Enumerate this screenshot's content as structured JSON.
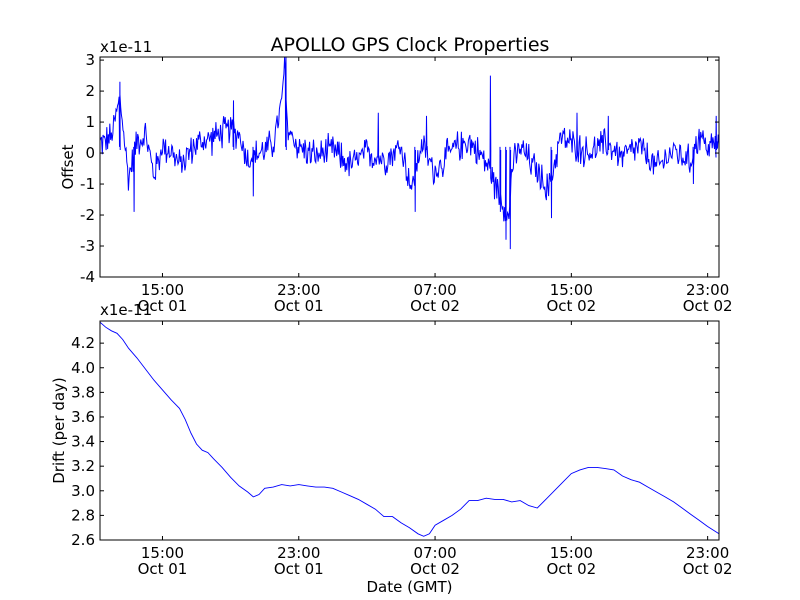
{
  "title": "APOLLO GPS Clock Properties",
  "colors": {
    "line": "#0000ff",
    "axes": "#000000",
    "background": "#ffffff"
  },
  "chart_data": [
    {
      "type": "line",
      "id": "offset",
      "ylabel": "Offset",
      "xlabel": "",
      "y_multiplier": "x1e-11",
      "xlim": [
        "Oct 01 11:20",
        "Oct 02 23:40"
      ],
      "ylim": [
        -4,
        3.1
      ],
      "yticks": [
        -4,
        -3,
        -2,
        -1,
        0,
        1,
        2,
        3
      ],
      "xticks": [
        {
          "time": "15:00",
          "date": "Oct 01"
        },
        {
          "time": "23:00",
          "date": "Oct 01"
        },
        {
          "time": "07:00",
          "date": "Oct 02"
        },
        {
          "time": "15:00",
          "date": "Oct 02"
        },
        {
          "time": "23:00",
          "date": "Oct 02"
        }
      ],
      "grid": false,
      "series": [
        {
          "color": "#0000ff",
          "points": [
            [
              "Oct 01 11:20",
              0.3
            ],
            [
              "Oct 01 12:00",
              0.5
            ],
            [
              "Oct 01 12:30",
              1.8
            ],
            [
              "Oct 01 13:00",
              -0.8
            ],
            [
              "Oct 01 13:30",
              0.4
            ],
            [
              "Oct 01 14:00",
              0.6
            ],
            [
              "Oct 01 14:30",
              -0.7
            ],
            [
              "Oct 01 15:00",
              0.2
            ],
            [
              "Oct 01 15:30",
              0.1
            ],
            [
              "Oct 01 16:00",
              -0.4
            ],
            [
              "Oct 01 17:00",
              0.3
            ],
            [
              "Oct 01 18:00",
              0.5
            ],
            [
              "Oct 01 19:00",
              0.8
            ],
            [
              "Oct 01 19:30",
              0.6
            ],
            [
              "Oct 01 20:00",
              -0.2
            ],
            [
              "Oct 01 21:00",
              0.1
            ],
            [
              "Oct 01 21:30",
              0.3
            ],
            [
              "Oct 01 22:00",
              1.6
            ],
            [
              "Oct 01 22:10",
              2.9
            ],
            [
              "Oct 01 22:20",
              0.8
            ],
            [
              "Oct 01 23:00",
              0.2
            ],
            [
              "Oct 02 00:00",
              -0.1
            ],
            [
              "Oct 02 01:00",
              0.1
            ],
            [
              "Oct 02 02:00",
              -0.4
            ],
            [
              "Oct 02 03:00",
              0.0
            ],
            [
              "Oct 02 04:00",
              -0.2
            ],
            [
              "Oct 02 05:00",
              0.2
            ],
            [
              "Oct 02 05:40",
              -1.2
            ],
            [
              "Oct 02 06:10",
              0.3
            ],
            [
              "Oct 02 07:00",
              -0.6
            ],
            [
              "Oct 02 08:00",
              0.1
            ],
            [
              "Oct 02 09:00",
              0.4
            ],
            [
              "Oct 02 10:00",
              -0.3
            ],
            [
              "Oct 02 10:40",
              -1.2
            ],
            [
              "Oct 02 11:05",
              -1.7
            ],
            [
              "Oct 02 11:20",
              -2.2
            ],
            [
              "Oct 02 11:30",
              -0.5
            ],
            [
              "Oct 02 12:00",
              0.2
            ],
            [
              "Oct 02 13:00",
              -0.6
            ],
            [
              "Oct 02 13:40",
              -1.2
            ],
            [
              "Oct 02 14:20",
              0.5
            ],
            [
              "Oct 02 15:00",
              0.3
            ],
            [
              "Oct 02 16:00",
              0.0
            ],
            [
              "Oct 02 17:00",
              0.3
            ],
            [
              "Oct 02 18:00",
              -0.1
            ],
            [
              "Oct 02 19:00",
              0.2
            ],
            [
              "Oct 02 20:00",
              -0.5
            ],
            [
              "Oct 02 21:00",
              0.1
            ],
            [
              "Oct 02 22:00",
              -0.3
            ],
            [
              "Oct 02 22:30",
              0.6
            ],
            [
              "Oct 02 23:00",
              0.2
            ],
            [
              "Oct 02 23:40",
              0.3
            ]
          ],
          "noise_amplitude": 0.45,
          "spikes": [
            [
              "Oct 01 12:30",
              2.3
            ],
            [
              "Oct 01 13:20",
              -1.9
            ],
            [
              "Oct 01 19:10",
              1.7
            ],
            [
              "Oct 01 20:20",
              -1.4
            ],
            [
              "Oct 01 22:15",
              3.1
            ],
            [
              "Oct 02 03:40",
              1.3
            ],
            [
              "Oct 02 05:50",
              -1.9
            ],
            [
              "Oct 02 06:30",
              1.2
            ],
            [
              "Oct 02 10:15",
              2.5
            ],
            [
              "Oct 02 10:50",
              -1.9
            ],
            [
              "Oct 02 11:10",
              -2.8
            ],
            [
              "Oct 02 11:25",
              -3.1
            ],
            [
              "Oct 02 13:50",
              -2.1
            ],
            [
              "Oct 02 15:20",
              1.3
            ],
            [
              "Oct 02 17:10",
              1.2
            ],
            [
              "Oct 02 22:10",
              -1.0
            ],
            [
              "Oct 02 23:30",
              1.2
            ]
          ]
        }
      ]
    },
    {
      "type": "line",
      "id": "drift",
      "ylabel": "Drift (per day)",
      "xlabel": "Date (GMT)",
      "y_multiplier": "x1e-11",
      "xlim": [
        "Oct 01 11:20",
        "Oct 02 23:40"
      ],
      "ylim": [
        2.6,
        4.38
      ],
      "yticks": [
        2.6,
        2.8,
        3.0,
        3.2,
        3.4,
        3.6,
        3.8,
        4.0,
        4.2
      ],
      "xticks": [
        {
          "time": "15:00",
          "date": "Oct 01"
        },
        {
          "time": "23:00",
          "date": "Oct 01"
        },
        {
          "time": "07:00",
          "date": "Oct 02"
        },
        {
          "time": "15:00",
          "date": "Oct 02"
        },
        {
          "time": "23:00",
          "date": "Oct 02"
        }
      ],
      "grid": false,
      "series": [
        {
          "color": "#0000ff",
          "points": [
            [
              "Oct 01 11:20",
              4.37
            ],
            [
              "Oct 01 11:40",
              4.33
            ],
            [
              "Oct 01 12:00",
              4.3
            ],
            [
              "Oct 01 12:20",
              4.28
            ],
            [
              "Oct 01 12:40",
              4.23
            ],
            [
              "Oct 01 13:00",
              4.16
            ],
            [
              "Oct 01 13:30",
              4.08
            ],
            [
              "Oct 01 14:00",
              3.99
            ],
            [
              "Oct 01 14:30",
              3.9
            ],
            [
              "Oct 01 15:00",
              3.82
            ],
            [
              "Oct 01 15:30",
              3.74
            ],
            [
              "Oct 01 16:00",
              3.67
            ],
            [
              "Oct 01 16:20",
              3.58
            ],
            [
              "Oct 01 16:40",
              3.47
            ],
            [
              "Oct 01 17:00",
              3.38
            ],
            [
              "Oct 01 17:20",
              3.33
            ],
            [
              "Oct 01 17:40",
              3.31
            ],
            [
              "Oct 01 18:00",
              3.26
            ],
            [
              "Oct 01 18:30",
              3.19
            ],
            [
              "Oct 01 19:00",
              3.11
            ],
            [
              "Oct 01 19:30",
              3.04
            ],
            [
              "Oct 01 20:00",
              2.99
            ],
            [
              "Oct 01 20:20",
              2.95
            ],
            [
              "Oct 01 20:40",
              2.97
            ],
            [
              "Oct 01 21:00",
              3.02
            ],
            [
              "Oct 01 21:30",
              3.03
            ],
            [
              "Oct 01 22:00",
              3.05
            ],
            [
              "Oct 01 22:30",
              3.04
            ],
            [
              "Oct 01 23:00",
              3.05
            ],
            [
              "Oct 01 23:30",
              3.04
            ],
            [
              "Oct 02 00:00",
              3.03
            ],
            [
              "Oct 02 00:30",
              3.03
            ],
            [
              "Oct 02 01:00",
              3.02
            ],
            [
              "Oct 02 01:30",
              2.99
            ],
            [
              "Oct 02 02:00",
              2.96
            ],
            [
              "Oct 02 02:30",
              2.93
            ],
            [
              "Oct 02 03:00",
              2.89
            ],
            [
              "Oct 02 03:30",
              2.85
            ],
            [
              "Oct 02 04:00",
              2.79
            ],
            [
              "Oct 02 04:30",
              2.79
            ],
            [
              "Oct 02 05:00",
              2.74
            ],
            [
              "Oct 02 05:30",
              2.7
            ],
            [
              "Oct 02 06:00",
              2.65
            ],
            [
              "Oct 02 06:20",
              2.63
            ],
            [
              "Oct 02 06:40",
              2.65
            ],
            [
              "Oct 02 07:00",
              2.72
            ],
            [
              "Oct 02 07:30",
              2.76
            ],
            [
              "Oct 02 08:00",
              2.8
            ],
            [
              "Oct 02 08:30",
              2.85
            ],
            [
              "Oct 02 09:00",
              2.92
            ],
            [
              "Oct 02 09:30",
              2.92
            ],
            [
              "Oct 02 10:00",
              2.94
            ],
            [
              "Oct 02 10:30",
              2.93
            ],
            [
              "Oct 02 11:00",
              2.93
            ],
            [
              "Oct 02 11:30",
              2.91
            ],
            [
              "Oct 02 12:00",
              2.92
            ],
            [
              "Oct 02 12:30",
              2.88
            ],
            [
              "Oct 02 13:00",
              2.86
            ],
            [
              "Oct 02 13:30",
              2.93
            ],
            [
              "Oct 02 14:00",
              3.0
            ],
            [
              "Oct 02 14:30",
              3.07
            ],
            [
              "Oct 02 15:00",
              3.14
            ],
            [
              "Oct 02 15:30",
              3.17
            ],
            [
              "Oct 02 16:00",
              3.19
            ],
            [
              "Oct 02 16:30",
              3.19
            ],
            [
              "Oct 02 17:00",
              3.18
            ],
            [
              "Oct 02 17:30",
              3.17
            ],
            [
              "Oct 02 18:00",
              3.12
            ],
            [
              "Oct 02 18:30",
              3.09
            ],
            [
              "Oct 02 19:00",
              3.07
            ],
            [
              "Oct 02 19:30",
              3.03
            ],
            [
              "Oct 02 20:00",
              2.99
            ],
            [
              "Oct 02 20:30",
              2.95
            ],
            [
              "Oct 02 21:00",
              2.91
            ],
            [
              "Oct 02 21:30",
              2.86
            ],
            [
              "Oct 02 22:00",
              2.81
            ],
            [
              "Oct 02 22:30",
              2.76
            ],
            [
              "Oct 02 23:00",
              2.71
            ],
            [
              "Oct 02 23:40",
              2.65
            ]
          ]
        }
      ]
    }
  ]
}
